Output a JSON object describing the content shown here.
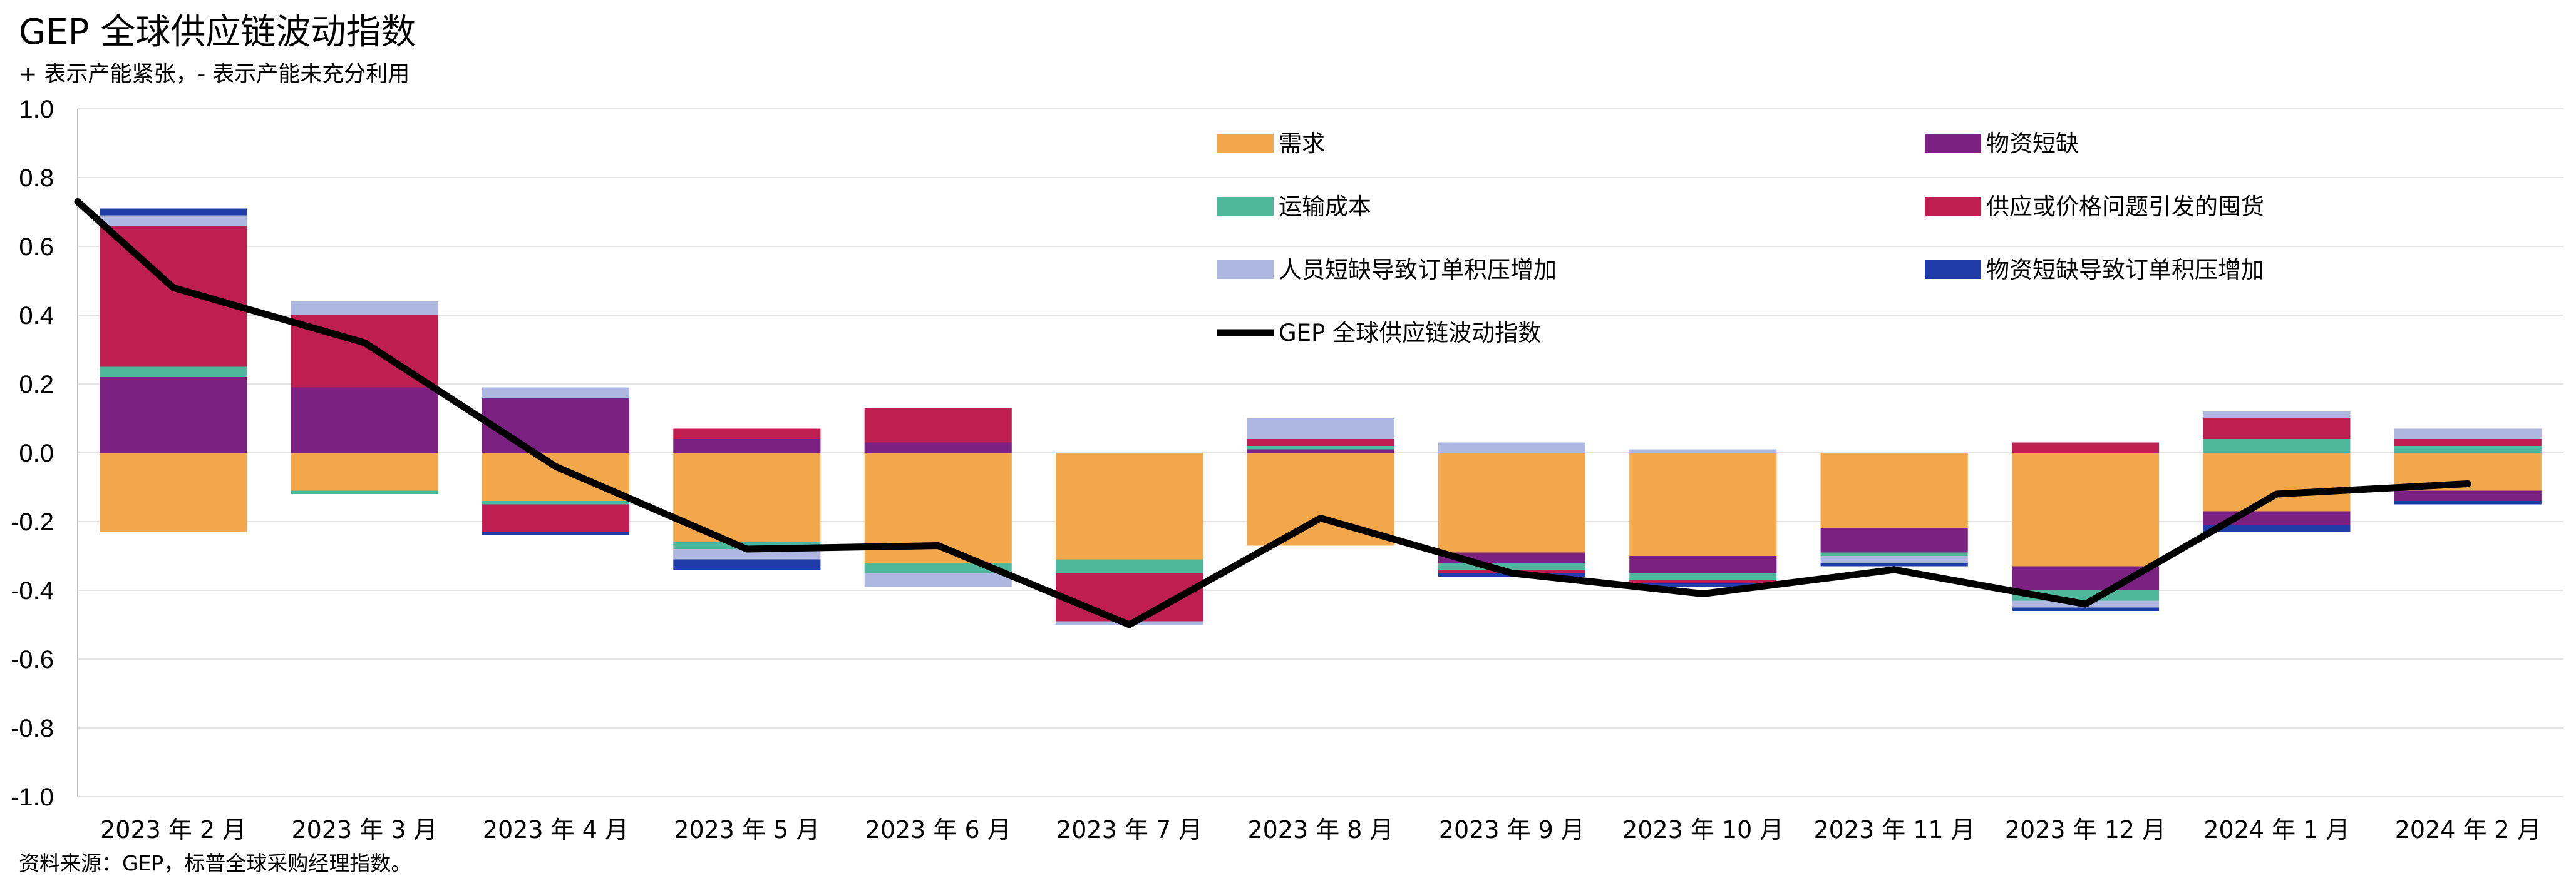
{
  "chart_data": {
    "type": "bar",
    "title": "GEP 全球供应链波动指数",
    "subtitle": "+ 表示产能紧张，- 表示产能未充分利用",
    "source": "资料来源：GEP，标普全球采购经理指数。",
    "ylim": [
      -1.0,
      1.0
    ],
    "yticks": [
      "1.0",
      "0.8",
      "0.6",
      "0.4",
      "0.2",
      "0.0",
      "-0.2",
      "-0.4",
      "-0.6",
      "-0.8",
      "-1.0"
    ],
    "grid": true,
    "legend_position": "top-right",
    "categories": [
      "2023 年 2 月",
      "2023 年 3 月",
      "2023 年 4 月",
      "2023 年 5 月",
      "2023 年 6 月",
      "2023 年 7 月",
      "2023 年 8 月",
      "2023 年 9 月",
      "2023 年 10 月",
      "2023 年 11 月",
      "2023 年 12 月",
      "2024 年 1 月",
      "2024 年 2 月"
    ],
    "series": [
      {
        "name": "需求",
        "color": "#F2A84A",
        "values": [
          -0.23,
          -0.11,
          -0.14,
          -0.26,
          -0.32,
          -0.31,
          -0.27,
          -0.29,
          -0.3,
          -0.22,
          -0.33,
          -0.17,
          -0.11
        ]
      },
      {
        "name": "物资短缺",
        "color": "#7B2182",
        "values": [
          0.22,
          0.19,
          0.16,
          0.04,
          0.03,
          0.0,
          0.01,
          -0.03,
          -0.05,
          -0.07,
          -0.07,
          -0.04,
          -0.03
        ]
      },
      {
        "name": "运输成本",
        "color": "#4FB89C",
        "values": [
          0.03,
          -0.01,
          -0.01,
          -0.02,
          -0.03,
          -0.04,
          0.01,
          -0.02,
          -0.02,
          -0.01,
          -0.03,
          0.04,
          0.02
        ]
      },
      {
        "name": "供应或价格问题引发的囤货",
        "color": "#BE1E52",
        "values": [
          0.41,
          0.21,
          -0.08,
          0.03,
          0.1,
          -0.14,
          0.02,
          -0.01,
          -0.01,
          0.0,
          0.03,
          0.06,
          0.02
        ]
      },
      {
        "name": "人员短缺导致订单积压增加",
        "color": "#AEB7E0",
        "values": [
          0.03,
          0.04,
          0.03,
          -0.03,
          -0.04,
          -0.01,
          0.06,
          0.03,
          0.01,
          -0.02,
          -0.02,
          0.02,
          0.03
        ]
      },
      {
        "name": "物资短缺导致订单积压增加",
        "color": "#1F3CA8",
        "values": [
          0.02,
          0.0,
          -0.01,
          -0.03,
          0.0,
          0.0,
          0.0,
          -0.01,
          -0.01,
          -0.01,
          -0.01,
          -0.02,
          -0.01
        ]
      }
    ],
    "line": {
      "name": "GEP 全球供应链波动指数",
      "color": "#000000",
      "values": [
        0.48,
        0.32,
        -0.04,
        -0.28,
        -0.27,
        -0.5,
        -0.19,
        -0.35,
        -0.41,
        -0.34,
        -0.44,
        -0.12,
        -0.09
      ],
      "start_value": 0.73
    }
  }
}
